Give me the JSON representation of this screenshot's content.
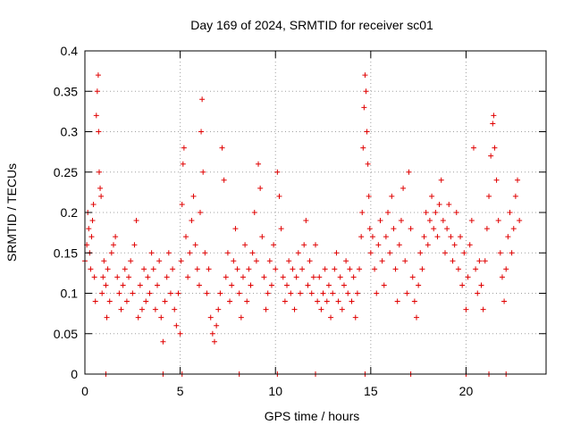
{
  "chart_data": {
    "type": "scatter",
    "title": "Day 169 of 2024, SRMTID for receiver sc01",
    "xlabel": "GPS time / hours",
    "ylabel": "SRMTID / TECUs",
    "xlim": [
      0,
      24.2
    ],
    "ylim": [
      0,
      0.4
    ],
    "x_ticks": [
      0,
      5,
      10,
      15,
      20
    ],
    "x_tick_labels": [
      "0",
      "5",
      "10",
      "15",
      "20"
    ],
    "y_ticks": [
      0,
      0.05,
      0.1,
      0.15,
      0.2,
      0.25,
      0.3,
      0.35,
      0.4
    ],
    "y_tick_labels": [
      "0",
      "0.05",
      "0.1",
      "0.15",
      "0.2",
      "0.25",
      "0.3",
      "0.35",
      "0.4"
    ],
    "grid": true,
    "marker": "plus",
    "color": "#e00000",
    "series": [
      {
        "name": "SRMTID sc01",
        "points": [
          [
            0.0,
            0.14
          ],
          [
            0.1,
            0.16
          ],
          [
            0.15,
            0.2
          ],
          [
            0.2,
            0.18
          ],
          [
            0.25,
            0.15
          ],
          [
            0.3,
            0.13
          ],
          [
            0.35,
            0.17
          ],
          [
            0.4,
            0.19
          ],
          [
            0.45,
            0.21
          ],
          [
            0.5,
            0.12
          ],
          [
            0.55,
            0.09
          ],
          [
            0.6,
            0.32
          ],
          [
            0.65,
            0.35
          ],
          [
            0.7,
            0.37
          ],
          [
            0.72,
            0.3
          ],
          [
            0.75,
            0.25
          ],
          [
            0.8,
            0.23
          ],
          [
            0.85,
            0.22
          ],
          [
            0.9,
            0.1
          ],
          [
            0.95,
            0.12
          ],
          [
            1.0,
            0.14
          ],
          [
            1.1,
            0.11
          ],
          [
            1.15,
            0.07
          ],
          [
            1.2,
            0.13
          ],
          [
            1.3,
            0.09
          ],
          [
            1.4,
            0.15
          ],
          [
            1.5,
            0.16
          ],
          [
            1.6,
            0.17
          ],
          [
            1.7,
            0.12
          ],
          [
            1.8,
            0.1
          ],
          [
            1.9,
            0.08
          ],
          [
            2.0,
            0.11
          ],
          [
            2.1,
            0.13
          ],
          [
            2.2,
            0.09
          ],
          [
            2.3,
            0.12
          ],
          [
            2.4,
            0.14
          ],
          [
            2.5,
            0.1
          ],
          [
            2.6,
            0.16
          ],
          [
            2.7,
            0.19
          ],
          [
            2.8,
            0.07
          ],
          [
            2.9,
            0.11
          ],
          [
            3.0,
            0.08
          ],
          [
            3.1,
            0.13
          ],
          [
            3.2,
            0.09
          ],
          [
            3.3,
            0.12
          ],
          [
            3.4,
            0.1
          ],
          [
            3.5,
            0.15
          ],
          [
            3.6,
            0.13
          ],
          [
            3.7,
            0.08
          ],
          [
            3.8,
            0.11
          ],
          [
            3.9,
            0.14
          ],
          [
            4.0,
            0.07
          ],
          [
            4.1,
            0.04
          ],
          [
            4.2,
            0.09
          ],
          [
            4.3,
            0.12
          ],
          [
            4.4,
            0.15
          ],
          [
            4.5,
            0.1
          ],
          [
            4.6,
            0.13
          ],
          [
            4.7,
            0.08
          ],
          [
            4.8,
            0.06
          ],
          [
            4.9,
            0.1
          ],
          [
            5.0,
            0.05
          ],
          [
            5.05,
            0.14
          ],
          [
            5.1,
            0.21
          ],
          [
            5.15,
            0.26
          ],
          [
            5.2,
            0.28
          ],
          [
            5.3,
            0.17
          ],
          [
            5.4,
            0.12
          ],
          [
            5.5,
            0.15
          ],
          [
            5.6,
            0.19
          ],
          [
            5.7,
            0.22
          ],
          [
            5.8,
            0.16
          ],
          [
            5.9,
            0.13
          ],
          [
            6.0,
            0.11
          ],
          [
            6.05,
            0.2
          ],
          [
            6.1,
            0.3
          ],
          [
            6.15,
            0.34
          ],
          [
            6.2,
            0.25
          ],
          [
            6.3,
            0.15
          ],
          [
            6.4,
            0.1
          ],
          [
            6.5,
            0.13
          ],
          [
            6.6,
            0.07
          ],
          [
            6.7,
            0.05
          ],
          [
            6.8,
            0.04
          ],
          [
            6.9,
            0.06
          ],
          [
            7.0,
            0.08
          ],
          [
            7.1,
            0.1
          ],
          [
            7.2,
            0.28
          ],
          [
            7.3,
            0.24
          ],
          [
            7.4,
            0.12
          ],
          [
            7.5,
            0.15
          ],
          [
            7.6,
            0.09
          ],
          [
            7.7,
            0.11
          ],
          [
            7.8,
            0.14
          ],
          [
            7.9,
            0.18
          ],
          [
            8.0,
            0.13
          ],
          [
            8.1,
            0.1
          ],
          [
            8.2,
            0.07
          ],
          [
            8.3,
            0.12
          ],
          [
            8.4,
            0.16
          ],
          [
            8.5,
            0.09
          ],
          [
            8.6,
            0.13
          ],
          [
            8.7,
            0.11
          ],
          [
            8.8,
            0.15
          ],
          [
            8.9,
            0.2
          ],
          [
            9.0,
            0.14
          ],
          [
            9.1,
            0.26
          ],
          [
            9.2,
            0.23
          ],
          [
            9.3,
            0.17
          ],
          [
            9.4,
            0.12
          ],
          [
            9.5,
            0.08
          ],
          [
            9.6,
            0.1
          ],
          [
            9.7,
            0.14
          ],
          [
            9.8,
            0.11
          ],
          [
            9.9,
            0.16
          ],
          [
            10.0,
            0.13
          ],
          [
            10.1,
            0.25
          ],
          [
            10.2,
            0.22
          ],
          [
            10.3,
            0.18
          ],
          [
            10.4,
            0.12
          ],
          [
            10.5,
            0.09
          ],
          [
            10.6,
            0.11
          ],
          [
            10.7,
            0.14
          ],
          [
            10.8,
            0.1
          ],
          [
            10.9,
            0.13
          ],
          [
            11.0,
            0.08
          ],
          [
            11.1,
            0.12
          ],
          [
            11.2,
            0.15
          ],
          [
            11.3,
            0.1
          ],
          [
            11.4,
            0.13
          ],
          [
            11.5,
            0.16
          ],
          [
            11.6,
            0.19
          ],
          [
            11.7,
            0.11
          ],
          [
            11.8,
            0.14
          ],
          [
            11.9,
            0.1
          ],
          [
            12.0,
            0.12
          ],
          [
            12.1,
            0.16
          ],
          [
            12.2,
            0.09
          ],
          [
            12.3,
            0.12
          ],
          [
            12.4,
            0.08
          ],
          [
            12.5,
            0.1
          ],
          [
            12.6,
            0.13
          ],
          [
            12.7,
            0.09
          ],
          [
            12.8,
            0.11
          ],
          [
            12.9,
            0.07
          ],
          [
            13.0,
            0.1
          ],
          [
            13.1,
            0.13
          ],
          [
            13.2,
            0.15
          ],
          [
            13.3,
            0.09
          ],
          [
            13.4,
            0.12
          ],
          [
            13.5,
            0.08
          ],
          [
            13.6,
            0.11
          ],
          [
            13.7,
            0.14
          ],
          [
            13.8,
            0.1
          ],
          [
            13.9,
            0.13
          ],
          [
            14.0,
            0.09
          ],
          [
            14.1,
            0.12
          ],
          [
            14.2,
            0.07
          ],
          [
            14.3,
            0.1
          ],
          [
            14.4,
            0.13
          ],
          [
            14.5,
            0.17
          ],
          [
            14.55,
            0.2
          ],
          [
            14.6,
            0.28
          ],
          [
            14.65,
            0.33
          ],
          [
            14.7,
            0.37
          ],
          [
            14.75,
            0.35
          ],
          [
            14.8,
            0.3
          ],
          [
            14.85,
            0.26
          ],
          [
            14.9,
            0.22
          ],
          [
            14.95,
            0.18
          ],
          [
            15.0,
            0.15
          ],
          [
            15.1,
            0.17
          ],
          [
            15.2,
            0.13
          ],
          [
            15.3,
            0.1
          ],
          [
            15.4,
            0.16
          ],
          [
            15.5,
            0.19
          ],
          [
            15.6,
            0.14
          ],
          [
            15.7,
            0.11
          ],
          [
            15.8,
            0.17
          ],
          [
            15.9,
            0.2
          ],
          [
            16.0,
            0.15
          ],
          [
            16.1,
            0.22
          ],
          [
            16.2,
            0.18
          ],
          [
            16.3,
            0.13
          ],
          [
            16.4,
            0.09
          ],
          [
            16.5,
            0.16
          ],
          [
            16.6,
            0.19
          ],
          [
            16.7,
            0.23
          ],
          [
            16.8,
            0.14
          ],
          [
            16.9,
            0.1
          ],
          [
            17.0,
            0.25
          ],
          [
            17.1,
            0.18
          ],
          [
            17.2,
            0.12
          ],
          [
            17.3,
            0.09
          ],
          [
            17.4,
            0.07
          ],
          [
            17.5,
            0.11
          ],
          [
            17.6,
            0.15
          ],
          [
            17.7,
            0.13
          ],
          [
            17.8,
            0.17
          ],
          [
            17.9,
            0.2
          ],
          [
            18.0,
            0.16
          ],
          [
            18.1,
            0.19
          ],
          [
            18.2,
            0.22
          ],
          [
            18.3,
            0.18
          ],
          [
            18.4,
            0.2
          ],
          [
            18.5,
            0.17
          ],
          [
            18.6,
            0.21
          ],
          [
            18.7,
            0.24
          ],
          [
            18.8,
            0.19
          ],
          [
            18.9,
            0.15
          ],
          [
            19.0,
            0.18
          ],
          [
            19.1,
            0.21
          ],
          [
            19.2,
            0.17
          ],
          [
            19.3,
            0.14
          ],
          [
            19.4,
            0.16
          ],
          [
            19.5,
            0.2
          ],
          [
            19.6,
            0.13
          ],
          [
            19.7,
            0.17
          ],
          [
            19.8,
            0.11
          ],
          [
            19.9,
            0.15
          ],
          [
            20.0,
            0.08
          ],
          [
            20.1,
            0.12
          ],
          [
            20.2,
            0.16
          ],
          [
            20.3,
            0.19
          ],
          [
            20.4,
            0.28
          ],
          [
            20.5,
            0.13
          ],
          [
            20.6,
            0.1
          ],
          [
            20.7,
            0.14
          ],
          [
            20.8,
            0.11
          ],
          [
            20.9,
            0.08
          ],
          [
            21.0,
            0.14
          ],
          [
            21.1,
            0.18
          ],
          [
            21.2,
            0.22
          ],
          [
            21.3,
            0.27
          ],
          [
            21.4,
            0.31
          ],
          [
            21.45,
            0.32
          ],
          [
            21.5,
            0.28
          ],
          [
            21.6,
            0.24
          ],
          [
            21.7,
            0.19
          ],
          [
            21.8,
            0.15
          ],
          [
            21.9,
            0.12
          ],
          [
            22.0,
            0.09
          ],
          [
            22.1,
            0.13
          ],
          [
            22.2,
            0.17
          ],
          [
            22.3,
            0.2
          ],
          [
            22.4,
            0.15
          ],
          [
            22.5,
            0.18
          ],
          [
            22.6,
            0.22
          ],
          [
            22.7,
            0.24
          ],
          [
            22.8,
            0.19
          ]
        ],
        "zero_points": [
          1.1,
          4.1,
          5.1,
          8.1,
          10.1,
          12.1,
          14.7,
          17.1,
          20.0,
          21.2,
          22.1
        ]
      }
    ]
  }
}
